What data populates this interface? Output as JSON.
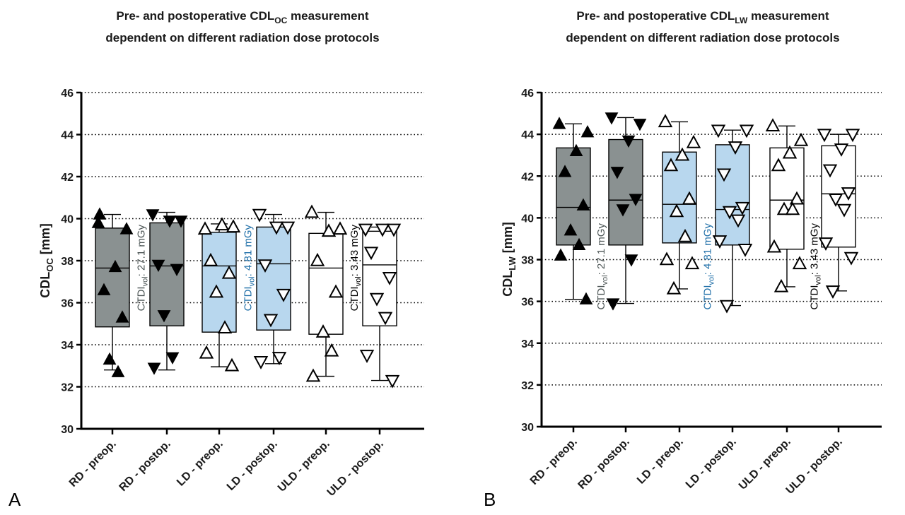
{
  "chart_data": [
    {
      "type": "box",
      "panel_label": "A",
      "title": {
        "line1_prefix": "Pre- and postoperative CDL",
        "line1_sub": "OC",
        "line1_suffix": " measurement",
        "line2": "dependent on different radiation dose protocols"
      },
      "ylabel": {
        "main": "CDL",
        "sub": "OC",
        "unit": " [mm]"
      },
      "ylim": [
        30,
        46
      ],
      "yticks": [
        "30",
        "32",
        "34",
        "36",
        "38",
        "40",
        "42",
        "44",
        "46"
      ],
      "grid": "horizontal dotted",
      "categories": [
        "RD - preop.",
        "RD - postop.",
        "LD - preop.",
        "LD - postop.",
        "ULD - preop.",
        "ULD - postop."
      ],
      "annotations": [
        {
          "between": [
            0,
            1
          ],
          "text_prefix": "CTDI",
          "text_sub": "vol",
          "text_suffix": ": 27.1 mGy",
          "color": "#4d5656"
        },
        {
          "between": [
            2,
            3
          ],
          "text_prefix": "CTDI",
          "text_sub": "vol",
          "text_suffix": ": 4.81 mGy",
          "color": "#1f6fa8"
        },
        {
          "between": [
            4,
            5
          ],
          "text_prefix": "CTDI",
          "text_sub": "vol",
          "text_suffix": ": 3.43 mGy",
          "color": "#000000"
        }
      ],
      "series": [
        {
          "fill": "#8a9191",
          "marker": "up",
          "marker_fill": "#000000",
          "q1": 34.85,
          "median": 37.65,
          "q3": 39.55,
          "min": 32.8,
          "max": 40.2,
          "points": [
            39.8,
            39.5,
            37.7,
            36.6,
            35.3,
            33.3,
            32.7,
            40.2
          ]
        },
        {
          "fill": "#8a9191",
          "marker": "down",
          "marker_fill": "#000000",
          "q1": 34.9,
          "median": 37.75,
          "q3": 39.8,
          "min": 32.8,
          "max": 40.3,
          "points": [
            40.2,
            39.9,
            39.9,
            37.8,
            37.6,
            35.4,
            33.4,
            32.9
          ]
        },
        {
          "fill": "#b8d7ee",
          "marker": "up",
          "marker_fill": "#ffffff",
          "q1": 34.6,
          "median": 37.75,
          "q3": 39.35,
          "min": 32.95,
          "max": 39.75,
          "points": [
            39.5,
            39.6,
            39.7,
            38.0,
            37.4,
            36.5,
            34.8,
            33.6,
            33.0
          ]
        },
        {
          "fill": "#b8d7ee",
          "marker": "down",
          "marker_fill": "#ffffff",
          "q1": 34.7,
          "median": 37.85,
          "q3": 39.6,
          "min": 33.1,
          "max": 40.2,
          "points": [
            40.2,
            39.6,
            39.6,
            37.8,
            36.4,
            35.2,
            33.4,
            33.2
          ]
        },
        {
          "fill": "#ffffff",
          "marker": "up",
          "marker_fill": "#ffffff",
          "q1": 34.5,
          "median": 37.65,
          "q3": 39.3,
          "min": 32.5,
          "max": 40.3,
          "points": [
            40.3,
            39.5,
            39.4,
            38.0,
            36.5,
            34.6,
            33.7,
            32.5
          ]
        },
        {
          "fill": "#ffffff",
          "marker": "down",
          "marker_fill": "#ffffff",
          "q1": 34.9,
          "median": 37.8,
          "q3": 39.4,
          "min": 32.3,
          "max": 39.6,
          "points": [
            39.5,
            39.5,
            39.5,
            38.4,
            37.2,
            36.2,
            35.3,
            33.5,
            32.3
          ]
        }
      ]
    },
    {
      "type": "box",
      "panel_label": "B",
      "title": {
        "line1_prefix": "Pre- and postoperative CDL",
        "line1_sub": "LW",
        "line1_suffix": " measurement",
        "line2": "dependent on different radiation dose protocols"
      },
      "ylabel": {
        "main": "CDL",
        "sub": "LW",
        "unit": " [mm]"
      },
      "ylim": [
        30,
        46
      ],
      "yticks": [
        "30",
        "32",
        "34",
        "36",
        "38",
        "40",
        "42",
        "44",
        "46"
      ],
      "grid": "horizontal dotted",
      "categories": [
        "RD - preop.",
        "RD - postop.",
        "LD - preop.",
        "LD - postop.",
        "ULD - preop.",
        "ULD - postop."
      ],
      "annotations": [
        {
          "between": [
            0,
            1
          ],
          "text_prefix": "CTDI",
          "text_sub": "vol",
          "text_suffix": ": 27.1 mGy",
          "color": "#4d5656"
        },
        {
          "between": [
            2,
            3
          ],
          "text_prefix": "CTDI",
          "text_sub": "vol",
          "text_suffix": ": 4.81 mGy",
          "color": "#1f6fa8"
        },
        {
          "between": [
            4,
            5
          ],
          "text_prefix": "CTDI",
          "text_sub": "vol",
          "text_suffix": ": 3.43 mGy",
          "color": "#000000"
        }
      ],
      "series": [
        {
          "fill": "#8a9191",
          "marker": "up",
          "marker_fill": "#000000",
          "q1": 38.7,
          "median": 40.5,
          "q3": 43.35,
          "min": 36.1,
          "max": 44.5,
          "points": [
            44.5,
            44.1,
            43.2,
            42.2,
            40.6,
            39.4,
            38.7,
            38.2,
            36.1
          ]
        },
        {
          "fill": "#8a9191",
          "marker": "down",
          "marker_fill": "#000000",
          "q1": 38.7,
          "median": 40.85,
          "q3": 43.75,
          "min": 35.9,
          "max": 44.8,
          "points": [
            44.8,
            44.5,
            43.7,
            42.2,
            40.9,
            40.4,
            38.0,
            35.9
          ]
        },
        {
          "fill": "#b8d7ee",
          "marker": "up",
          "marker_fill": "#ffffff",
          "q1": 38.8,
          "median": 40.65,
          "q3": 43.15,
          "min": 36.6,
          "max": 44.6,
          "points": [
            44.6,
            43.6,
            43.0,
            42.5,
            40.9,
            40.3,
            39.1,
            38.0,
            37.8,
            36.6
          ]
        },
        {
          "fill": "#b8d7ee",
          "marker": "down",
          "marker_fill": "#ffffff",
          "q1": 38.7,
          "median": 40.4,
          "q3": 43.5,
          "min": 35.8,
          "max": 44.2,
          "points": [
            44.2,
            44.2,
            43.4,
            42.1,
            40.5,
            40.3,
            39.9,
            38.9,
            38.5,
            35.8
          ]
        },
        {
          "fill": "#ffffff",
          "marker": "up",
          "marker_fill": "#ffffff",
          "q1": 38.5,
          "median": 40.85,
          "q3": 43.35,
          "min": 36.7,
          "max": 44.4,
          "points": [
            44.4,
            43.7,
            43.1,
            42.5,
            40.9,
            40.4,
            40.4,
            38.6,
            37.8,
            36.7
          ]
        },
        {
          "fill": "#ffffff",
          "marker": "down",
          "marker_fill": "#ffffff",
          "q1": 38.6,
          "median": 41.15,
          "q3": 43.45,
          "min": 36.5,
          "max": 44.0,
          "points": [
            44.0,
            44.0,
            43.3,
            42.3,
            41.2,
            40.9,
            40.4,
            38.8,
            38.1,
            36.5
          ]
        }
      ]
    }
  ]
}
